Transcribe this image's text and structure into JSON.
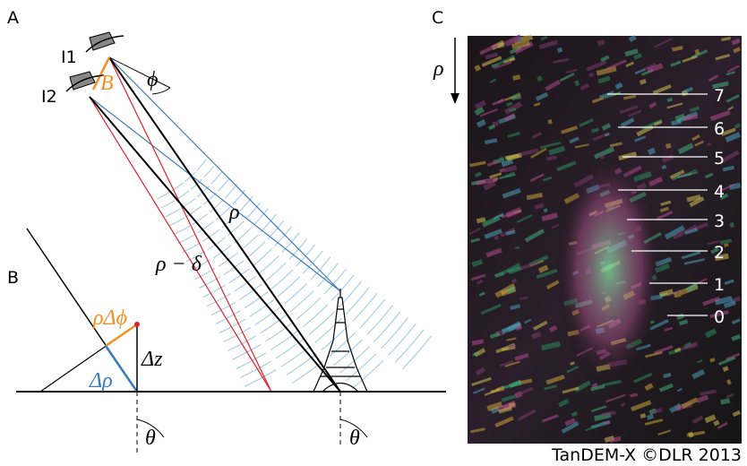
{
  "panel_a": {
    "label": "A",
    "antenna_1": "I1",
    "antenna_2": "I2",
    "baseline": "B",
    "angle": "ϕ",
    "range": "ρ",
    "range_delta": "ρ − δ",
    "incidence": "θ"
  },
  "panel_b": {
    "label": "B",
    "perp": "ρΔϕ",
    "height": "Δz",
    "range_diff": "Δρ",
    "incidence": "θ"
  },
  "panel_c": {
    "label": "C",
    "axis": "ρ",
    "levels": [
      "0",
      "1",
      "2",
      "3",
      "4",
      "5",
      "6",
      "7"
    ],
    "credit": "TanDEM-X ©DLR 2013"
  }
}
